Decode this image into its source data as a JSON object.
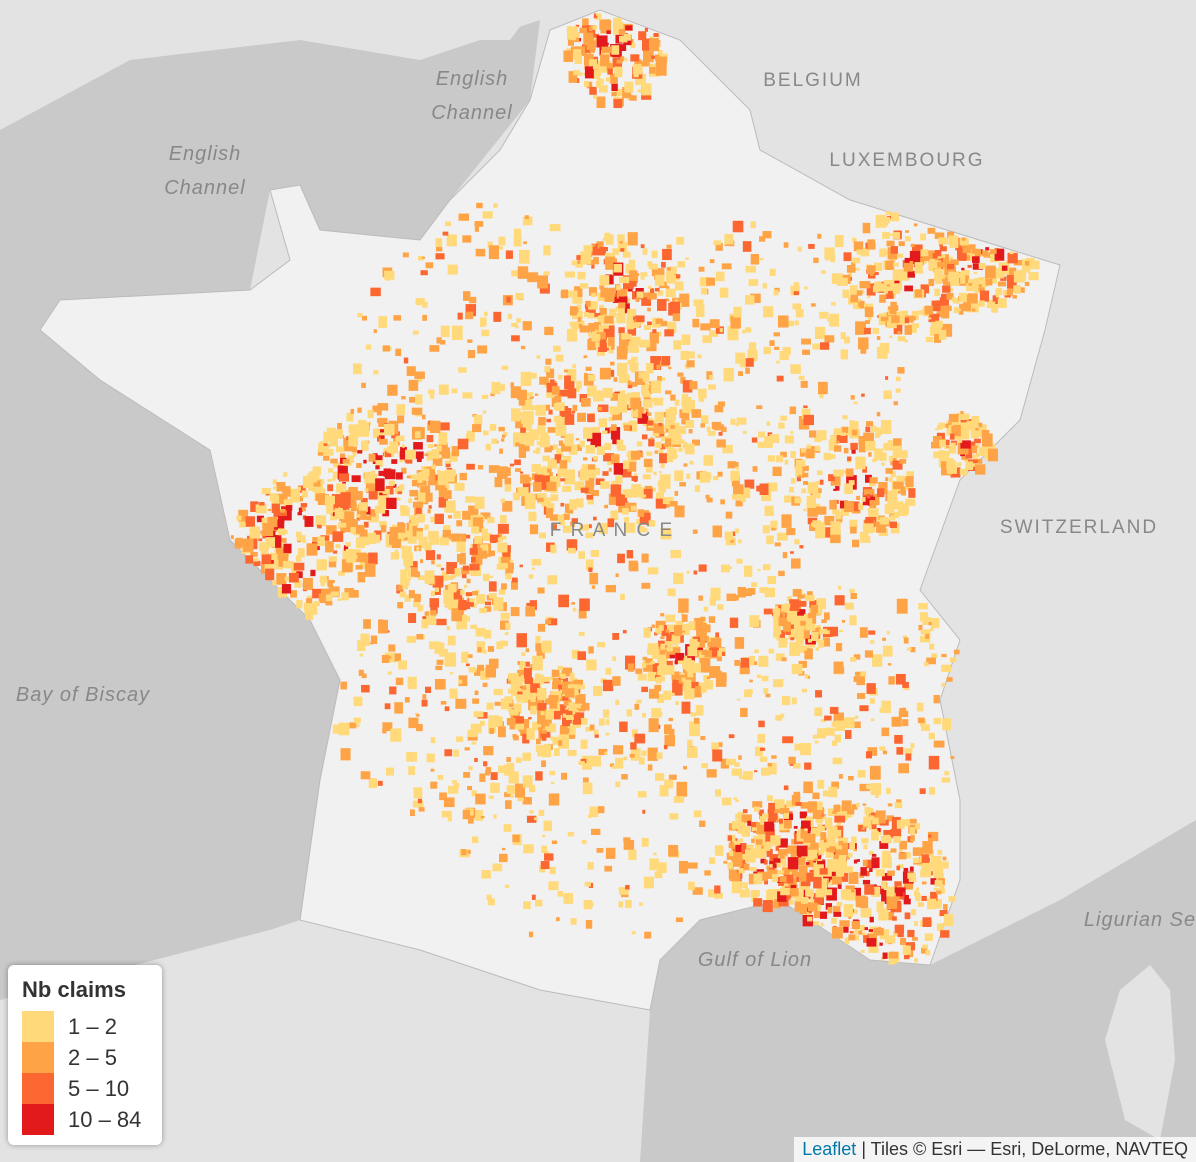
{
  "map": {
    "place_labels": [
      {
        "lines": [
          "English",
          "Channel"
        ]
      },
      {
        "lines": [
          "English",
          "Channel"
        ]
      },
      {
        "lines": [
          "BELGIUM"
        ]
      },
      {
        "lines": [
          "LUXEMBOURG"
        ]
      },
      {
        "lines": [
          "SWITZERLAND"
        ]
      },
      {
        "lines": [
          "F R A N C E"
        ]
      },
      {
        "lines": [
          "Bay of Biscay"
        ]
      },
      {
        "lines": [
          "Gulf of Lion"
        ]
      },
      {
        "lines": [
          "Ligurian Se"
        ]
      }
    ],
    "legend": {
      "title": "Nb claims",
      "items": [
        {
          "label": "1 – 2",
          "color": "#ffd97a"
        },
        {
          "label": "2 – 5",
          "color": "#fea446"
        },
        {
          "label": "5 – 10",
          "color": "#fc6630"
        },
        {
          "label": "10 – 84",
          "color": "#e31a1c"
        }
      ]
    },
    "attribution": {
      "link": "Leaflet",
      "text": "| Tiles © Esri — Esri, DeLorme, NAVTEQ"
    }
  }
}
